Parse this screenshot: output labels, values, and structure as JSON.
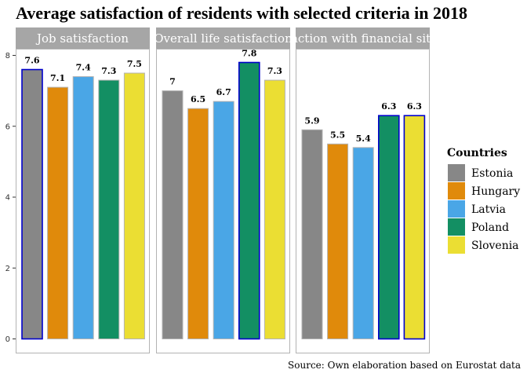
{
  "chart_data": {
    "type": "bar",
    "title": "Average satisfaction of residents with selected criteria in 2018",
    "caption": "Source: Own elaboration based on Eurostat data",
    "legend_title": "Countries",
    "legend_position": "right",
    "ylim": [
      0,
      8
    ],
    "yticks": [
      "0",
      "2",
      "4",
      "6",
      "8"
    ],
    "categories": [
      "Estonia",
      "Hungary",
      "Latvia",
      "Poland",
      "Slovenia"
    ],
    "colors": {
      "Estonia": "#878787",
      "Hungary": "#e08a0b",
      "Latvia": "#4aa6e6",
      "Poland": "#138f63",
      "Slovenia": "#ebde33",
      "highlight_border": "#0000cc",
      "default_border": "#b3b3b3",
      "strip_bg": "#a6a6a6"
    },
    "panels": [
      {
        "label": "Job satisfaction",
        "values": [
          7.6,
          7.1,
          7.4,
          7.3,
          7.5
        ],
        "labels": [
          "7.6",
          "7.1",
          "7.4",
          "7.3",
          "7.5"
        ],
        "highlight": [
          true,
          false,
          false,
          false,
          false
        ]
      },
      {
        "label": "Overall life satisfaction",
        "values": [
          7.0,
          6.5,
          6.7,
          7.8,
          7.3
        ],
        "labels": [
          "7",
          "6.5",
          "6.7",
          "7.8",
          "7.3"
        ],
        "highlight": [
          false,
          false,
          false,
          true,
          false
        ]
      },
      {
        "label": "Satisfaction with financial situation",
        "values": [
          5.9,
          5.5,
          5.4,
          6.3,
          6.3
        ],
        "labels": [
          "5.9",
          "5.5",
          "5.4",
          "6.3",
          "6.3"
        ],
        "highlight": [
          false,
          false,
          false,
          true,
          true
        ]
      }
    ]
  }
}
